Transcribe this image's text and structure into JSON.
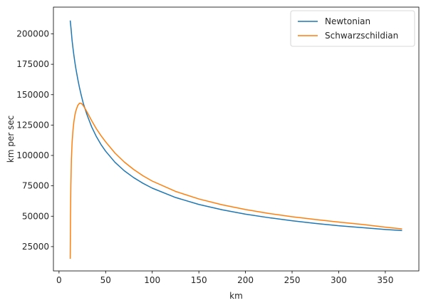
{
  "chart_data": {
    "type": "line",
    "title": "",
    "xlabel": "km",
    "ylabel": "km per sec",
    "xlim": [
      -6,
      386
    ],
    "ylim": [
      5000,
      222000
    ],
    "xticks": [
      0,
      50,
      100,
      150,
      200,
      250,
      300,
      350
    ],
    "yticks": [
      25000,
      50000,
      75000,
      100000,
      125000,
      150000,
      175000,
      200000
    ],
    "grid": false,
    "legend": "top-right",
    "series": [
      {
        "name": "Newtonian",
        "color": "#1f77b4",
        "x": [
          12,
          13,
          14,
          15,
          16,
          17,
          18,
          20,
          22,
          24,
          26,
          28,
          30,
          35,
          40,
          45,
          50,
          60,
          70,
          80,
          90,
          100,
          125,
          150,
          175,
          200,
          225,
          250,
          275,
          300,
          325,
          350,
          368
        ],
        "y": [
          211000,
          203600,
          194700,
          188100,
          182100,
          176700,
          171800,
          163200,
          155600,
          149000,
          142900,
          138200,
          133500,
          123500,
          115600,
          109000,
          103500,
          94400,
          87400,
          81800,
          77100,
          73100,
          65400,
          59700,
          55300,
          51700,
          48800,
          46300,
          44100,
          42200,
          40600,
          39100,
          38200
        ]
      },
      {
        "name": "Schwarzschildian",
        "color": "#ff7f0e",
        "x": [
          12,
          12.3,
          12.7,
          13.3,
          14,
          15,
          16,
          17,
          18,
          20,
          22,
          24,
          26,
          28,
          30,
          35,
          40,
          45,
          50,
          60,
          70,
          80,
          90,
          100,
          125,
          150,
          175,
          200,
          225,
          250,
          275,
          300,
          325,
          350,
          368
        ],
        "y": [
          15000,
          50000,
          75000,
          97000,
          110000,
          121000,
          128000,
          133000,
          136500,
          141000,
          143000,
          142800,
          141000,
          138500,
          135800,
          128600,
          122000,
          116300,
          111200,
          102000,
          94600,
          88500,
          83300,
          78900,
          70400,
          64200,
          59400,
          55500,
          52300,
          49600,
          47300,
          45200,
          43300,
          41000,
          39500
        ]
      }
    ]
  }
}
